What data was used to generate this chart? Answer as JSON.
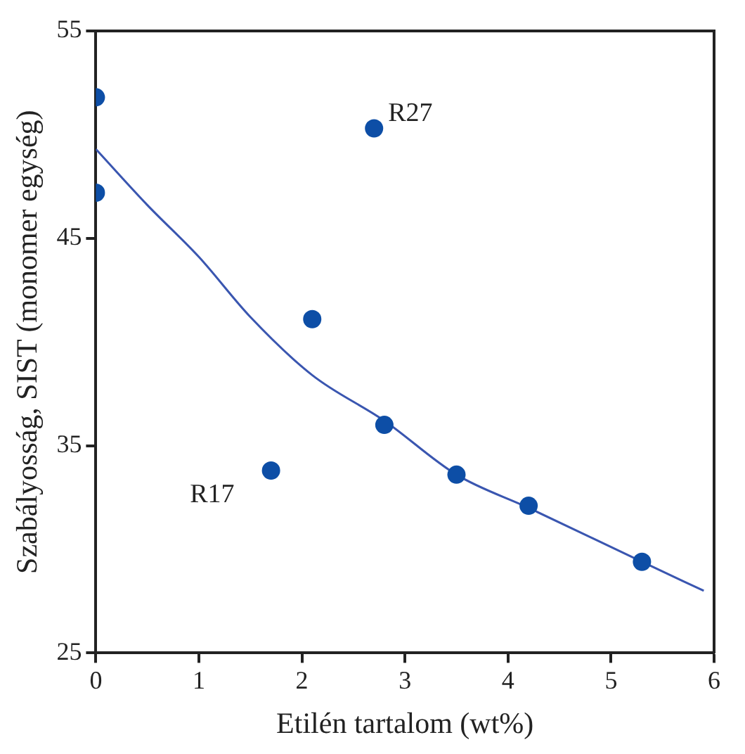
{
  "chart_data": {
    "type": "scatter",
    "xlabel": "Etilén tartalom (wt%)",
    "ylabel": "Szabályosság, SIST (monomer egység)",
    "xlim": [
      0,
      6
    ],
    "xticks": [
      0,
      1,
      2,
      3,
      4,
      5,
      6
    ],
    "ylim": [
      25,
      55
    ],
    "yticks": [
      25,
      35,
      45,
      55
    ],
    "grid": false,
    "legend": false,
    "marker": "circle",
    "series": [
      {
        "color": "#0d4ea6",
        "x": [
          0,
          0,
          2.7,
          2.1,
          1.7,
          2.8,
          3.5,
          4.2,
          5.3
        ],
        "values": [
          51.8,
          47.2,
          50.3,
          41.1,
          33.8,
          36.0,
          33.6,
          32.1,
          29.4
        ]
      },
      {
        "type": "line",
        "color": "#3a56b0",
        "marker": "none",
        "x": [
          0,
          0.5,
          1,
          1.5,
          2.1,
          2.8,
          3.5,
          4.2,
          5.3,
          5.9
        ],
        "values": [
          49.3,
          46.6,
          44.1,
          41.2,
          38.4,
          36.2,
          33.6,
          32.0,
          29.4,
          28.0
        ]
      }
    ],
    "annotations": [
      {
        "text": "R27",
        "x": 2.7,
        "y": 50.3
      },
      {
        "text": "R17",
        "x": 1.7,
        "y": 33.8
      }
    ]
  }
}
